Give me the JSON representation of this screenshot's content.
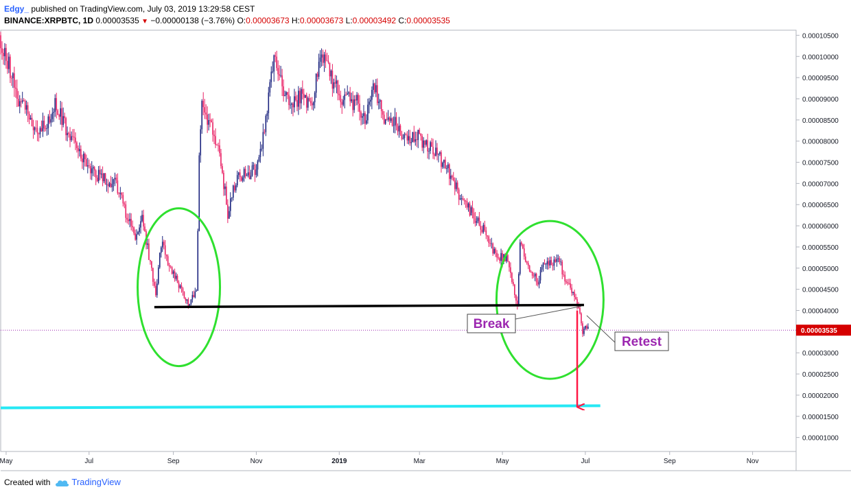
{
  "header": {
    "author": "Edgy_",
    "published": "published on TradingView.com, July 03, 2019 13:29:58 CEST",
    "symbol": "BINANCE:XRPBTC, 1D",
    "last": "0.00003535",
    "arrow": "▼",
    "change": "−0.00000138 (−3.76%)",
    "o_label": "O:",
    "o_value": "0.00003673",
    "h_label": "H:",
    "h_value": "0.00003673",
    "l_label": "L:",
    "l_value": "0.00003492",
    "c_label": "C:",
    "c_value": "0.00003535"
  },
  "footer": {
    "created_with": "Created with",
    "brand": "TradingView",
    "logo_icon": "tradingview-cloud-icon"
  },
  "chart_data": {
    "type": "candlestick",
    "symbol": "BINANCE:XRPBTC",
    "interval": "1D",
    "x_axis": {
      "ticks": [
        {
          "label": "May",
          "date": "2018-05-01"
        },
        {
          "label": "Jul",
          "date": "2018-07-01"
        },
        {
          "label": "Sep",
          "date": "2018-09-01"
        },
        {
          "label": "Nov",
          "date": "2018-11-01"
        },
        {
          "label": "2019",
          "date": "2019-01-01",
          "bold": true
        },
        {
          "label": "Mar",
          "date": "2019-03-01"
        },
        {
          "label": "May",
          "date": "2019-05-01"
        },
        {
          "label": "Jul",
          "date": "2019-07-01"
        },
        {
          "label": "Sep",
          "date": "2019-09-01"
        },
        {
          "label": "Nov",
          "date": "2019-11-01"
        }
      ],
      "range": [
        "2018-04-27",
        "2019-12-03"
      ]
    },
    "y_axis": {
      "range": [
        6.7e-06,
        0.0001062
      ],
      "ticks": [
        "0.00001000",
        "0.00001500",
        "0.00002000",
        "0.00002500",
        "0.00003000",
        "0.00003500",
        "0.00004000",
        "0.00004500",
        "0.00005000",
        "0.00005500",
        "0.00006000",
        "0.00006500",
        "0.00007000",
        "0.00007500",
        "0.00008000",
        "0.00008500",
        "0.00009000",
        "0.00009500",
        "0.00010000",
        "0.00010500"
      ]
    },
    "last_price": {
      "label": "0.00003535",
      "value": 3.535e-05,
      "color": "#d50000"
    },
    "price_path": [
      [
        "2018-04-27",
        0.000105
      ],
      [
        "2018-05-05",
        9.7e-05
      ],
      [
        "2018-05-10",
        9e-05
      ],
      [
        "2018-05-18",
        8.7e-05
      ],
      [
        "2018-05-25",
        8.2e-05
      ],
      [
        "2018-06-01",
        8.4e-05
      ],
      [
        "2018-06-08",
        8.9e-05
      ],
      [
        "2018-06-15",
        8.3e-05
      ],
      [
        "2018-06-25",
        7.7e-05
      ],
      [
        "2018-07-05",
        7.3e-05
      ],
      [
        "2018-07-12",
        7.1e-05
      ],
      [
        "2018-07-22",
        7e-05
      ],
      [
        "2018-07-30",
        6.2e-05
      ],
      [
        "2018-08-05",
        5.7e-05
      ],
      [
        "2018-08-10",
        6.2e-05
      ],
      [
        "2018-08-15",
        5.3e-05
      ],
      [
        "2018-08-20",
        4.3e-05
      ],
      [
        "2018-08-24",
        5.6e-05
      ],
      [
        "2018-09-01",
        4.9e-05
      ],
      [
        "2018-09-08",
        4.5e-05
      ],
      [
        "2018-09-13",
        4.2e-05
      ],
      [
        "2018-09-19",
        4.4e-05
      ],
      [
        "2018-09-21",
        7.5e-05
      ],
      [
        "2018-09-23",
        8.8e-05
      ],
      [
        "2018-10-01",
        8.3e-05
      ],
      [
        "2018-10-07",
        7.5e-05
      ],
      [
        "2018-10-12",
        6.3e-05
      ],
      [
        "2018-10-18",
        7.1e-05
      ],
      [
        "2018-10-25",
        7.2e-05
      ],
      [
        "2018-11-02",
        7.3e-05
      ],
      [
        "2018-11-08",
        8.3e-05
      ],
      [
        "2018-11-15",
        9.9e-05
      ],
      [
        "2018-11-22",
        9.2e-05
      ],
      [
        "2018-11-28",
        8.9e-05
      ],
      [
        "2018-12-05",
        9.1e-05
      ],
      [
        "2018-12-12",
        8.8e-05
      ],
      [
        "2018-12-20",
        0.0001
      ],
      [
        "2018-12-27",
        9.5e-05
      ],
      [
        "2019-01-05",
        9e-05
      ],
      [
        "2019-01-15",
        8.9e-05
      ],
      [
        "2019-01-22",
        8.5e-05
      ],
      [
        "2019-01-27",
        9.5e-05
      ],
      [
        "2019-02-03",
        8.5e-05
      ],
      [
        "2019-02-12",
        8.4e-05
      ],
      [
        "2019-02-22",
        8e-05
      ],
      [
        "2019-03-01",
        8.1e-05
      ],
      [
        "2019-03-12",
        7.8e-05
      ],
      [
        "2019-03-22",
        7.4e-05
      ],
      [
        "2019-03-27",
        7e-05
      ],
      [
        "2019-04-03",
        6.6e-05
      ],
      [
        "2019-04-12",
        6.2e-05
      ],
      [
        "2019-04-20",
        5.8e-05
      ],
      [
        "2019-04-27",
        5.3e-05
      ],
      [
        "2019-05-05",
        5.2e-05
      ],
      [
        "2019-05-13",
        4.1e-05
      ],
      [
        "2019-05-15",
        5.6e-05
      ],
      [
        "2019-05-22",
        5e-05
      ],
      [
        "2019-05-28",
        4.7e-05
      ],
      [
        "2019-06-02",
        5.2e-05
      ],
      [
        "2019-06-07",
        5.1e-05
      ],
      [
        "2019-06-12",
        5.3e-05
      ],
      [
        "2019-06-17",
        4.7e-05
      ],
      [
        "2019-06-22",
        4.5e-05
      ],
      [
        "2019-06-27",
        4.1e-05
      ],
      [
        "2019-06-30",
        3.5e-05
      ],
      [
        "2019-07-02",
        3.7e-05
      ],
      [
        "2019-07-03",
        3.535e-05
      ]
    ],
    "annotations": {
      "support_line": {
        "from": [
          "2018-08-18",
          4.08e-05
        ],
        "to": [
          "2019-06-30",
          4.13e-05
        ],
        "color": "#000000"
      },
      "target_line": {
        "from": [
          "2018-04-27",
          1.7e-05
        ],
        "to": [
          "2019-07-12",
          1.75e-05
        ],
        "color": "#26e8f4"
      },
      "circle_left": {
        "center": [
          "2018-09-05",
          4.55e-05
        ],
        "color": "#2fe02f"
      },
      "circle_right": {
        "center": [
          "2019-06-05",
          4.25e-05
        ],
        "color": "#2fe02f"
      },
      "drop_arrow": {
        "from": [
          "2019-06-25",
          4e-05
        ],
        "to": [
          "2019-06-25",
          1.72e-05
        ],
        "color": "#ff1744"
      },
      "break_label": {
        "text": "Break",
        "color": "#9c27b0"
      },
      "retest_label": {
        "text": "Retest",
        "color": "#9c27b0"
      }
    }
  }
}
